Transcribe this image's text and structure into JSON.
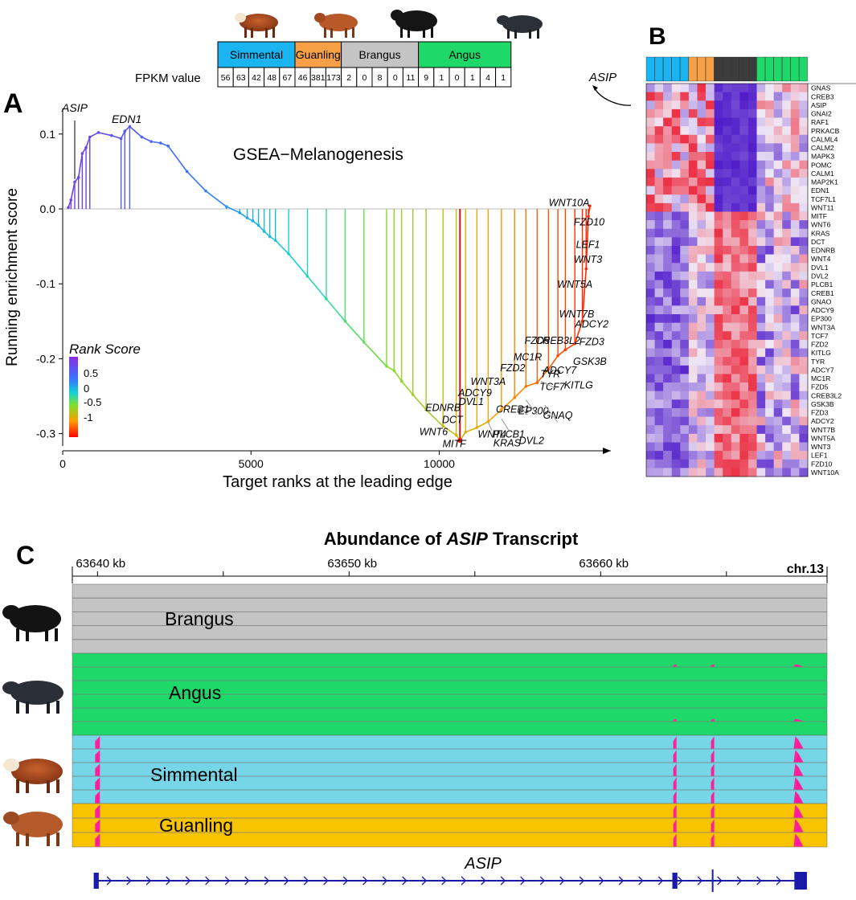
{
  "panels": {
    "a": "A",
    "b": "B",
    "c": "C"
  },
  "fpkm_table": {
    "row_label": "FPKM value",
    "breeds": [
      {
        "name": "Simmental",
        "color": "#1ab4f0",
        "values": [
          "56",
          "63",
          "42",
          "48",
          "67"
        ]
      },
      {
        "name": "Guanling",
        "color": "#f7a046",
        "values": [
          "46",
          "381",
          "173"
        ]
      },
      {
        "name": "Brangus",
        "color": "#c4c4c4",
        "values": [
          "2",
          "0",
          "8",
          "0",
          "11"
        ]
      },
      {
        "name": "Angus",
        "color": "#1fd86a",
        "values": [
          "9",
          "1",
          "0",
          "1",
          "4",
          "1"
        ]
      }
    ],
    "gene_label": "ASIP"
  },
  "chart_data": [
    {
      "type": "line",
      "title": "GSEA−Melanogenesis",
      "xlabel": "Target ranks at the leading edge",
      "ylabel": "Running enrichment score",
      "xlim": [
        0,
        14600
      ],
      "ylim": [
        -0.325,
        0.125
      ],
      "xticks": [
        0,
        5000,
        10000
      ],
      "xtick_labels": [
        "0",
        "5000",
        "10000"
      ],
      "yticks": [
        0.1,
        0.0,
        -0.1,
        -0.2,
        -0.3
      ],
      "ytick_labels": [
        "0.1",
        "0.0",
        "-0.1",
        "-0.2",
        "-0.3"
      ],
      "legend": {
        "title": "Rank Score",
        "labels": [
          "0.5",
          "0",
          "-0.5",
          "-1"
        ],
        "position": "bottom-left"
      },
      "points": [
        [
          150,
          0.002
        ],
        [
          220,
          0.012
        ],
        [
          320,
          0.036
        ],
        [
          420,
          0.042
        ],
        [
          520,
          0.074
        ],
        [
          620,
          0.082
        ],
        [
          720,
          0.096
        ],
        [
          950,
          0.102
        ],
        [
          1300,
          0.098
        ],
        [
          1550,
          0.094
        ],
        [
          1650,
          0.104
        ],
        [
          1780,
          0.11
        ],
        [
          2100,
          0.096
        ],
        [
          2350,
          0.09
        ],
        [
          2600,
          0.088
        ],
        [
          2800,
          0.084
        ],
        [
          3300,
          0.05
        ],
        [
          3800,
          0.024
        ],
        [
          4350,
          0.003
        ],
        [
          4700,
          -0.005
        ],
        [
          4900,
          -0.012
        ],
        [
          5050,
          -0.016
        ],
        [
          5200,
          -0.022
        ],
        [
          5350,
          -0.03
        ],
        [
          5500,
          -0.037
        ],
        [
          5650,
          -0.042
        ],
        [
          6000,
          -0.06
        ],
        [
          6500,
          -0.09
        ],
        [
          7000,
          -0.12
        ],
        [
          7500,
          -0.15
        ],
        [
          8000,
          -0.178
        ],
        [
          8600,
          -0.21
        ],
        [
          8800,
          -0.216
        ],
        [
          9000,
          -0.23
        ],
        [
          9300,
          -0.248
        ],
        [
          9650,
          -0.268
        ],
        [
          10100,
          -0.29
        ],
        [
          10450,
          -0.302
        ],
        [
          10550,
          -0.309
        ],
        [
          10700,
          -0.298
        ],
        [
          11000,
          -0.292
        ],
        [
          11300,
          -0.284
        ],
        [
          11650,
          -0.268
        ],
        [
          12000,
          -0.252
        ],
        [
          12300,
          -0.237
        ],
        [
          12600,
          -0.232
        ],
        [
          12900,
          -0.214
        ],
        [
          13150,
          -0.196
        ],
        [
          13350,
          -0.188
        ],
        [
          13600,
          -0.18
        ],
        [
          13800,
          -0.15
        ],
        [
          13900,
          -0.08
        ],
        [
          13960,
          -0.01
        ],
        [
          14000,
          0.004
        ]
      ],
      "spikes": [
        150,
        220,
        320,
        420,
        520,
        620,
        720,
        1550,
        1650,
        1780,
        4350,
        4700,
        4900,
        5050,
        5200,
        5350,
        5500,
        5650,
        6000,
        6500,
        7000,
        7500,
        8000,
        8600,
        8800,
        9000,
        9300,
        9650,
        10100,
        10450,
        10550,
        10700,
        11000,
        11300,
        11650,
        12000,
        12300,
        12600,
        12900,
        13150,
        13350,
        13600,
        13800,
        13900,
        13960,
        14000
      ],
      "gene_labels": [
        {
          "text": "ASIP",
          "x": 320,
          "y": 0.13
        },
        {
          "text": "EDN1",
          "x": 1700,
          "y": 0.115
        },
        {
          "text": "WNT10A",
          "x": 13450,
          "y": 0.004
        },
        {
          "text": "FZD10",
          "x": 13980,
          "y": -0.022
        },
        {
          "text": "LEF1",
          "x": 13950,
          "y": -0.052
        },
        {
          "text": "WNT3",
          "x": 13950,
          "y": -0.072
        },
        {
          "text": "WNT5A",
          "x": 13600,
          "y": -0.105
        },
        {
          "text": "WNT7B",
          "x": 13650,
          "y": -0.145
        },
        {
          "text": "ADCY2",
          "x": 14050,
          "y": -0.158
        },
        {
          "text": "FZD3",
          "x": 14050,
          "y": -0.182
        },
        {
          "text": "FZD5",
          "x": 12600,
          "y": -0.18
        },
        {
          "text": "CREB3L2",
          "x": 13150,
          "y": -0.18
        },
        {
          "text": "MC1R",
          "x": 12350,
          "y": -0.202
        },
        {
          "text": "GSK3B",
          "x": 14000,
          "y": -0.208
        },
        {
          "text": "ADCY7",
          "x": 13200,
          "y": -0.22
        },
        {
          "text": "FZD2",
          "x": 11950,
          "y": -0.217
        },
        {
          "text": "TYR",
          "x": 12950,
          "y": -0.225
        },
        {
          "text": "WNT3A",
          "x": 11300,
          "y": -0.235
        },
        {
          "text": "TCF7",
          "x": 13000,
          "y": -0.242
        },
        {
          "text": "KITLG",
          "x": 13700,
          "y": -0.24
        },
        {
          "text": "ADCY9",
          "x": 10950,
          "y": -0.25
        },
        {
          "text": "DVL1",
          "x": 10850,
          "y": -0.262
        },
        {
          "text": "EDNRB",
          "x": 10100,
          "y": -0.27
        },
        {
          "text": "CREB1",
          "x": 11950,
          "y": -0.272
        },
        {
          "text": "EP300",
          "x": 12500,
          "y": -0.274
        },
        {
          "text": "GNAQ",
          "x": 13150,
          "y": -0.28
        },
        {
          "text": "DCT",
          "x": 10350,
          "y": -0.286
        },
        {
          "text": "WNT6",
          "x": 9850,
          "y": -0.302
        },
        {
          "text": "WNT4",
          "x": 11400,
          "y": -0.305
        },
        {
          "text": "PLCB1",
          "x": 11850,
          "y": -0.305
        },
        {
          "text": "KRAS",
          "x": 11800,
          "y": -0.317
        },
        {
          "text": "DVL2",
          "x": 12450,
          "y": -0.314
        },
        {
          "text": "MITF",
          "x": 10400,
          "y": -0.318
        }
      ]
    },
    {
      "type": "heatmap",
      "column_groups": [
        "Simmental",
        "Guanling",
        "Brangus",
        "Angus"
      ],
      "column_group_sizes": [
        5,
        3,
        5,
        6
      ],
      "genes": [
        "GNAS",
        "CREB3",
        "ASIP",
        "GNAI2",
        "RAF1",
        "PRKACB",
        "CALML4",
        "CALM2",
        "MAPK3",
        "POMC",
        "CALM1",
        "MAP2K1",
        "EDN1",
        "TCF7L1",
        "WNT11",
        "MITF",
        "WNT6",
        "KRAS",
        "DCT",
        "EDNRB",
        "WNT4",
        "DVL1",
        "DVL2",
        "PLCB1",
        "CREB1",
        "GNAO",
        "ADCY9",
        "EP300",
        "WNT3A",
        "TCF7",
        "FZD2",
        "KITLG",
        "TYR",
        "ADCY7",
        "MC1R",
        "FZD5",
        "CREB3L2",
        "GSK3B",
        "FZD3",
        "ADCY2",
        "WNT7B",
        "WNT5A",
        "WNT3",
        "LEF1",
        "FZD10",
        "WNT10A"
      ]
    },
    {
      "type": "area",
      "title_prefix": "Abundance of ",
      "title_gene": "ASIP",
      "title_suffix": " Transcript",
      "chromosome": "chr.13",
      "xlim": [
        63639.0,
        63669.0
      ],
      "ticks": [
        63640,
        63645,
        63650,
        63655,
        63660,
        63665,
        63668
      ],
      "tick_labels": [
        "63640 kb",
        "",
        "63650 kb",
        "",
        "63660 kb",
        "",
        ""
      ],
      "tracks": [
        {
          "name": "Brangus",
          "color": "#c4c4c4",
          "rows": 5,
          "peaks": []
        },
        {
          "name": "Angus",
          "color": "#1fd86a",
          "rows": 6,
          "peaks": [
            63662.95,
            63664.45,
            63667.8
          ]
        },
        {
          "name": "Simmental",
          "color": "#76d6e8",
          "rows": 5,
          "peaks": [
            63640.0,
            63662.95,
            63664.45,
            63667.8
          ]
        },
        {
          "name": "Guanling",
          "color": "#f8c400",
          "rows": 3,
          "peaks": [
            63640.0,
            63662.95,
            63664.45,
            63667.8
          ]
        }
      ],
      "gene_track": {
        "name": "ASIP",
        "start": 63639.9,
        "end": 63668.2,
        "exons": [
          [
            63639.85,
            63640.05
          ],
          [
            63662.85,
            63663.05
          ],
          [
            63664.42,
            63664.48
          ],
          [
            63667.7,
            63668.2
          ]
        ]
      }
    }
  ]
}
